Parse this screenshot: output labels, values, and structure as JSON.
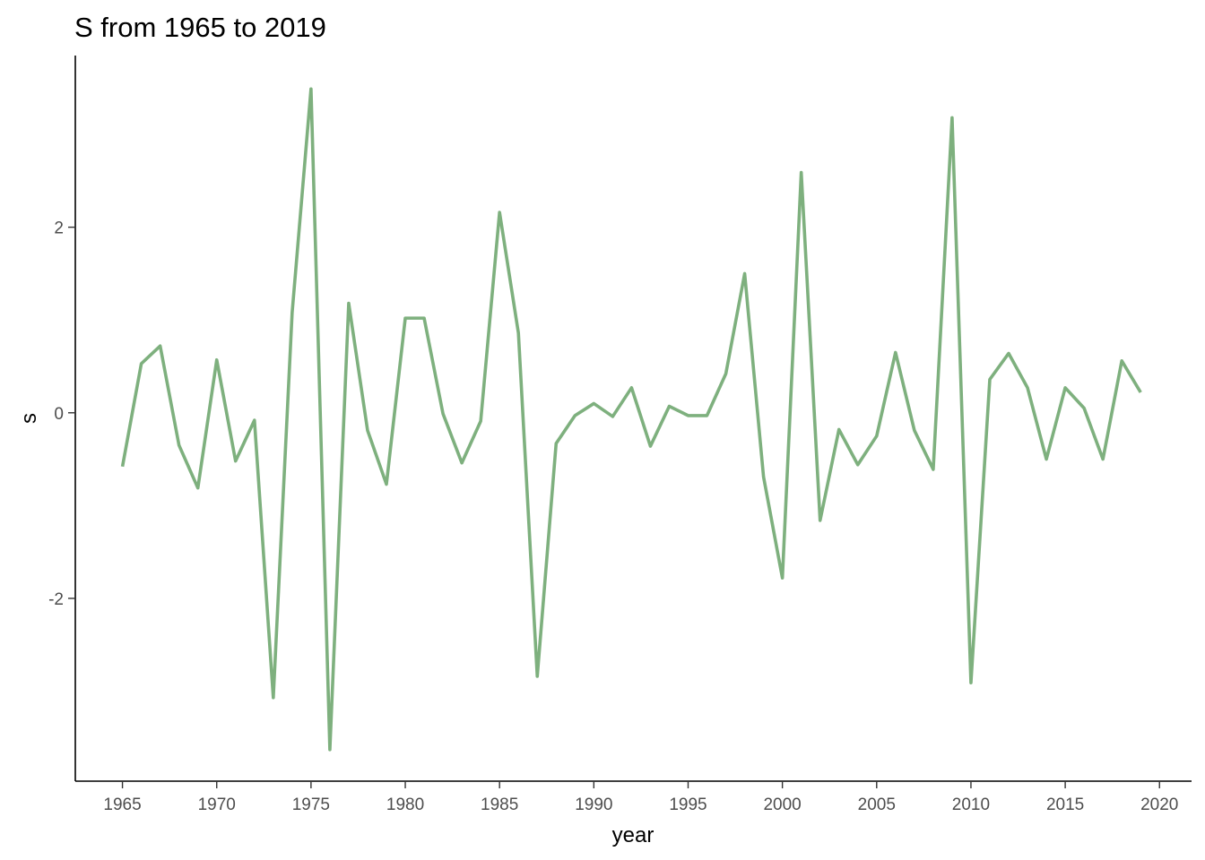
{
  "chart_data": {
    "type": "line",
    "title": "S from 1965 to 2019",
    "xlabel": "year",
    "ylabel": "s",
    "xlim": [
      1962.5,
      2021.7
    ],
    "ylim": [
      -3.97,
      3.85
    ],
    "x_ticks": [
      1965,
      1970,
      1975,
      1980,
      1985,
      1990,
      1995,
      2000,
      2005,
      2010,
      2015,
      2020
    ],
    "x_tick_labels": [
      "1965",
      "1970",
      "1975",
      "1980",
      "1985",
      "1990",
      "1995",
      "2000",
      "2005",
      "2010",
      "2015",
      "2020"
    ],
    "y_ticks": [
      -2,
      0,
      2
    ],
    "y_tick_labels": [
      "-2",
      "0",
      "2"
    ],
    "grid": false,
    "legend": "none",
    "line_color": "#7eb07e",
    "x": [
      1965,
      1966,
      1967,
      1968,
      1969,
      1970,
      1971,
      1972,
      1973,
      1974,
      1975,
      1976,
      1977,
      1978,
      1979,
      1980,
      1981,
      1982,
      1983,
      1984,
      1985,
      1986,
      1987,
      1988,
      1989,
      1990,
      1991,
      1992,
      1993,
      1994,
      1995,
      1996,
      1997,
      1998,
      1999,
      2000,
      2001,
      2002,
      2003,
      2004,
      2005,
      2006,
      2007,
      2008,
      2009,
      2010,
      2011,
      2012,
      2013,
      2014,
      2015,
      2016,
      2017,
      2018,
      2019
    ],
    "y": [
      -0.58,
      0.53,
      0.72,
      -0.35,
      -0.81,
      0.57,
      -0.52,
      -0.08,
      -3.07,
      1.08,
      3.49,
      -3.63,
      1.18,
      -0.19,
      -0.77,
      1.02,
      1.02,
      -0.01,
      -0.54,
      -0.09,
      2.16,
      0.86,
      -2.84,
      -0.33,
      -0.03,
      0.1,
      -0.04,
      0.27,
      -0.36,
      0.07,
      -0.03,
      -0.03,
      0.42,
      1.5,
      -0.69,
      -1.78,
      2.59,
      -1.16,
      -0.18,
      -0.56,
      -0.25,
      0.65,
      -0.19,
      -0.61,
      3.18,
      -2.91,
      0.36,
      0.64,
      0.27,
      -0.5,
      0.27,
      0.05,
      -0.5,
      0.56,
      0.22
    ]
  }
}
